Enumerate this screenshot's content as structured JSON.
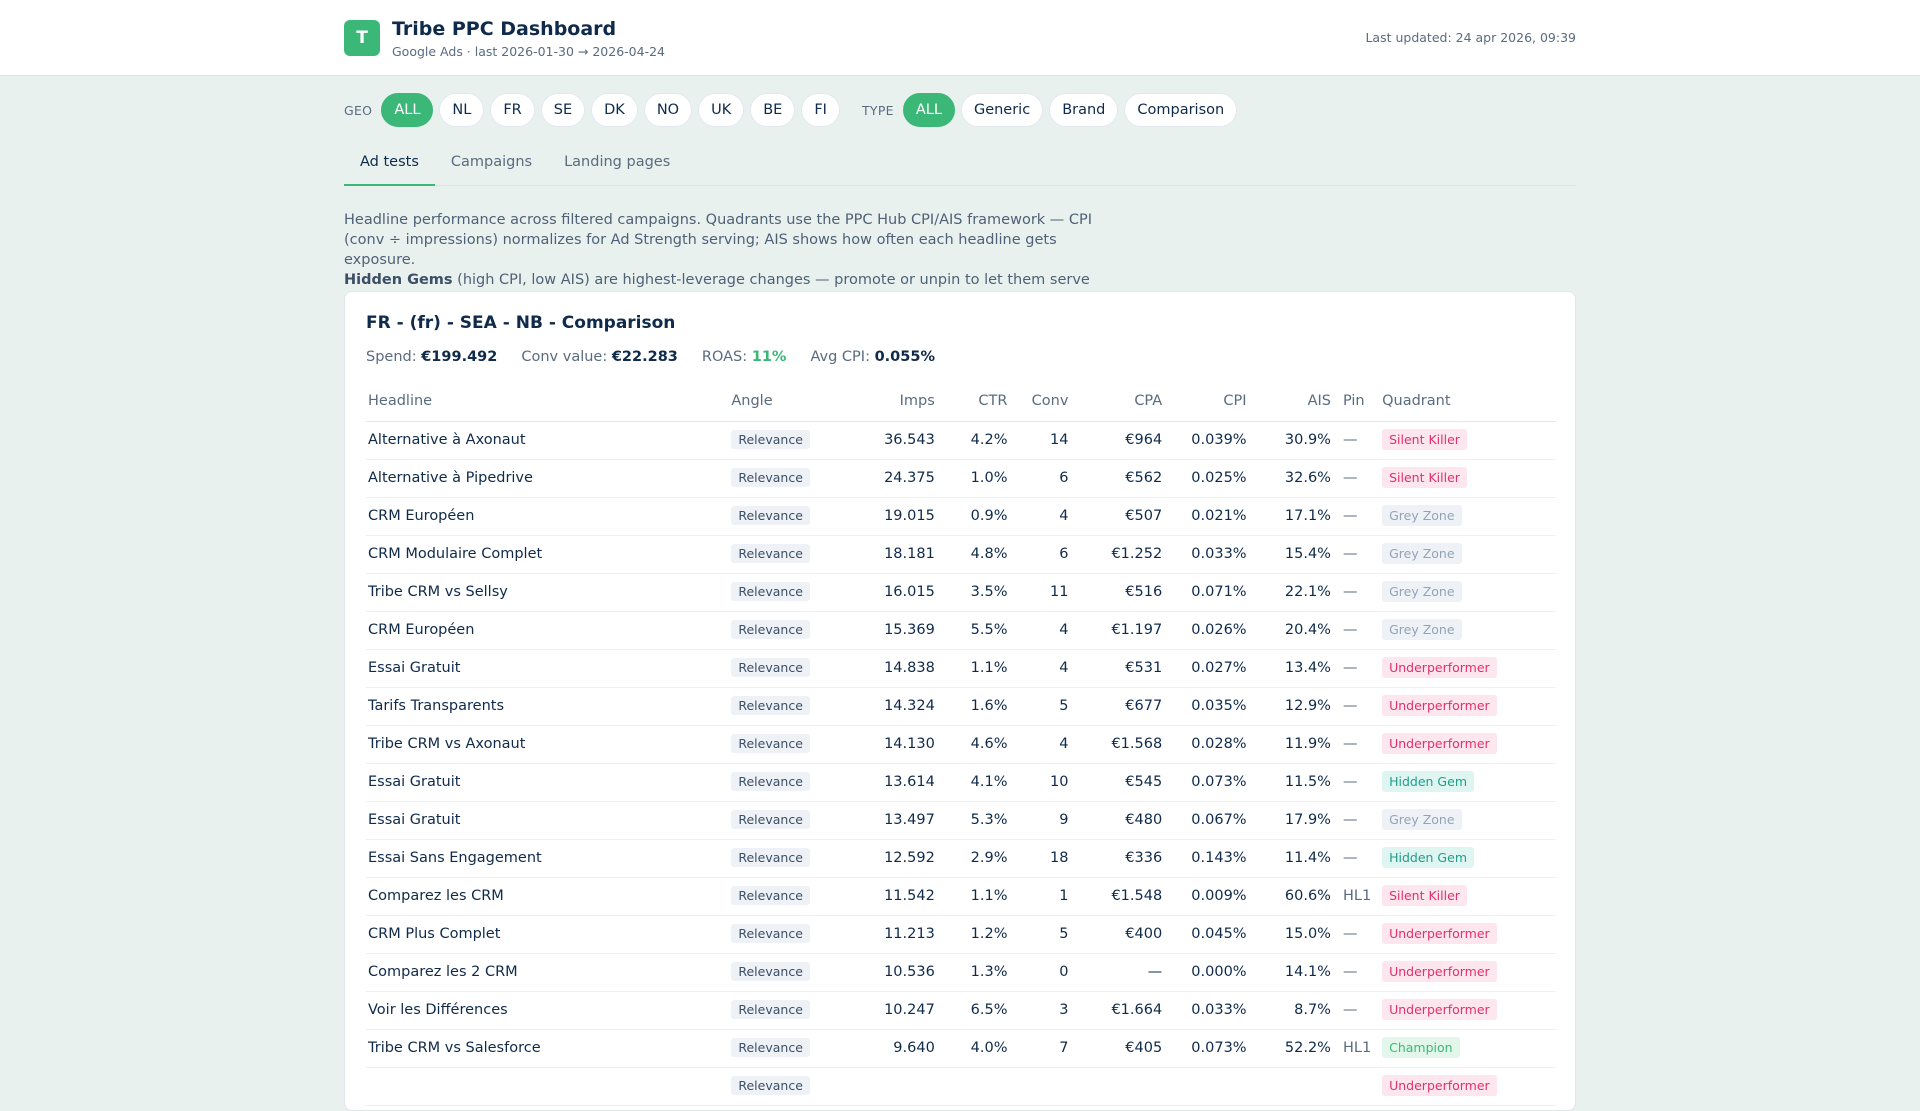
{
  "header": {
    "logo_letter": "T",
    "title": "Tribe PPC Dashboard",
    "subtitle": "Google Ads · last 2026-01-30 → 2026-04-24",
    "last_updated": "Last updated: 24 apr 2026, 09:39"
  },
  "filters": {
    "geo_label": "GEO",
    "geo": [
      "ALL",
      "NL",
      "FR",
      "SE",
      "DK",
      "NO",
      "UK",
      "BE",
      "FI"
    ],
    "geo_active": "ALL",
    "type_label": "TYPE",
    "type": [
      "ALL",
      "Generic",
      "Brand",
      "Comparison"
    ],
    "type_active": "ALL"
  },
  "tabs": [
    {
      "label": "Ad tests",
      "active": true
    },
    {
      "label": "Campaigns",
      "active": false
    },
    {
      "label": "Landing pages",
      "active": false
    }
  ],
  "description": {
    "line": "Headline performance across filtered campaigns. Quadrants use the PPC Hub CPI/AIS framework — CPI (conv ÷ impressions) normalizes for Ad Strength serving; AIS shows how often each headline gets exposure.",
    "bold": "Hidden Gems",
    "rest": " (high CPI, low AIS) are highest-leverage changes — promote or unpin to let them serve more."
  },
  "card": {
    "title": "FR - (fr) - SEA - NB - Comparison",
    "stats": {
      "spend_label": "Spend:",
      "spend": "€199.492",
      "conv_value_label": "Conv value:",
      "conv_value": "€22.283",
      "roas_label": "ROAS:",
      "roas": "11%",
      "avg_cpi_label": "Avg CPI:",
      "avg_cpi": "0.055%"
    },
    "columns": [
      "Headline",
      "Angle",
      "Imps",
      "CTR",
      "Conv",
      "CPA",
      "CPI",
      "AIS",
      "Pin",
      "Quadrant"
    ],
    "rows": [
      [
        "Alternative à Axonaut",
        "Relevance",
        "36.543",
        "4.2%",
        "14",
        "€964",
        "0.039%",
        "30.9%",
        "—",
        "Silent Killer"
      ],
      [
        "Alternative à Pipedrive",
        "Relevance",
        "24.375",
        "1.0%",
        "6",
        "€562",
        "0.025%",
        "32.6%",
        "—",
        "Silent Killer"
      ],
      [
        "CRM Européen",
        "Relevance",
        "19.015",
        "0.9%",
        "4",
        "€507",
        "0.021%",
        "17.1%",
        "—",
        "Grey Zone"
      ],
      [
        "CRM Modulaire Complet",
        "Relevance",
        "18.181",
        "4.8%",
        "6",
        "€1.252",
        "0.033%",
        "15.4%",
        "—",
        "Grey Zone"
      ],
      [
        "Tribe CRM vs Sellsy",
        "Relevance",
        "16.015",
        "3.5%",
        "11",
        "€516",
        "0.071%",
        "22.1%",
        "—",
        "Grey Zone"
      ],
      [
        "CRM Européen",
        "Relevance",
        "15.369",
        "5.5%",
        "4",
        "€1.197",
        "0.026%",
        "20.4%",
        "—",
        "Grey Zone"
      ],
      [
        "Essai Gratuit",
        "Relevance",
        "14.838",
        "1.1%",
        "4",
        "€531",
        "0.027%",
        "13.4%",
        "—",
        "Underperformer"
      ],
      [
        "Tarifs Transparents",
        "Relevance",
        "14.324",
        "1.6%",
        "5",
        "€677",
        "0.035%",
        "12.9%",
        "—",
        "Underperformer"
      ],
      [
        "Tribe CRM vs Axonaut",
        "Relevance",
        "14.130",
        "4.6%",
        "4",
        "€1.568",
        "0.028%",
        "11.9%",
        "—",
        "Underperformer"
      ],
      [
        "Essai Gratuit",
        "Relevance",
        "13.614",
        "4.1%",
        "10",
        "€545",
        "0.073%",
        "11.5%",
        "—",
        "Hidden Gem"
      ],
      [
        "Essai Gratuit",
        "Relevance",
        "13.497",
        "5.3%",
        "9",
        "€480",
        "0.067%",
        "17.9%",
        "—",
        "Grey Zone"
      ],
      [
        "Essai Sans Engagement",
        "Relevance",
        "12.592",
        "2.9%",
        "18",
        "€336",
        "0.143%",
        "11.4%",
        "—",
        "Hidden Gem"
      ],
      [
        "Comparez les CRM",
        "Relevance",
        "11.542",
        "1.1%",
        "1",
        "€1.548",
        "0.009%",
        "60.6%",
        "HL1",
        "Silent Killer"
      ],
      [
        "CRM Plus Complet",
        "Relevance",
        "11.213",
        "1.2%",
        "5",
        "€400",
        "0.045%",
        "15.0%",
        "—",
        "Underperformer"
      ],
      [
        "Comparez les 2 CRM",
        "Relevance",
        "10.536",
        "1.3%",
        "0",
        "—",
        "0.000%",
        "14.1%",
        "—",
        "Underperformer"
      ],
      [
        "Voir les Différences",
        "Relevance",
        "10.247",
        "6.5%",
        "3",
        "€1.664",
        "0.033%",
        "8.7%",
        "—",
        "Underperformer"
      ],
      [
        "Tribe CRM vs Salesforce",
        "Relevance",
        "9.640",
        "4.0%",
        "7",
        "€405",
        "0.073%",
        "52.2%",
        "HL1",
        "Champion"
      ],
      [
        "",
        "Relevance",
        "",
        "",
        "",
        "",
        "",
        "",
        "",
        "Underperformer"
      ]
    ]
  },
  "quadrant_colors": {
    "Silent Killer": {
      "bg": "#fde6ee",
      "fg": "#e0306e"
    },
    "Grey Zone": {
      "bg": "#eef2f6",
      "fg": "#94a3b8"
    },
    "Underperformer": {
      "bg": "#fde6ee",
      "fg": "#e0306e"
    },
    "Hidden Gem": {
      "bg": "#dff5f1",
      "fg": "#1f9e8a"
    },
    "Champion": {
      "bg": "#e3f6ea",
      "fg": "#3bb878"
    }
  }
}
